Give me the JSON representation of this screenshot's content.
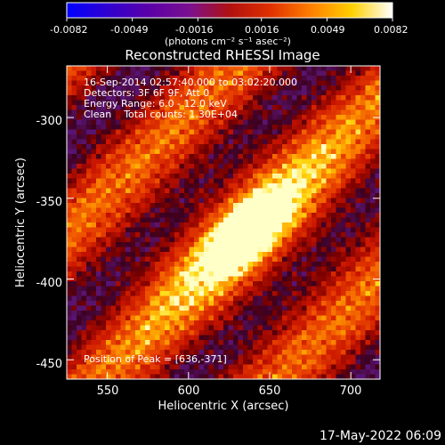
{
  "colorbar": {
    "ticks": [
      "-0.0082",
      "-0.0049",
      "-0.0016",
      "0.0016",
      "0.0049",
      "0.0082"
    ],
    "tick_values": [
      -0.0082,
      -0.0049,
      -0.0016,
      0.0016,
      0.0049,
      0.0082
    ],
    "range": [
      -0.0082,
      0.0082
    ],
    "unit_label": "(photons cm⁻² s⁻¹ asec⁻²)",
    "colors": [
      "#0000ff",
      "#3000d0",
      "#5a00a8",
      "#7a1090",
      "#b01010",
      "#e03000",
      "#ff8000",
      "#ffd000",
      "#ffffff"
    ]
  },
  "chart_data": {
    "type": "heatmap",
    "title": "Reconstructed RHESSI Image",
    "xlabel": "Heliocentric X (arcsec)",
    "ylabel": "Heliocentric Y (arcsec)",
    "xlim": [
      525,
      718
    ],
    "ylim": [
      -462,
      -268
    ],
    "x_ticks": [
      550,
      600,
      650,
      700
    ],
    "y_ticks": [
      -300,
      -350,
      -400,
      -450
    ],
    "annotations": [
      "16-Sep-2014 02:57:40.000 to 03:02:20.000",
      "Detectors: 3F 6F 9F, Att 0",
      "Energy Range: 6.0 - 12.0 keV",
      "Clean    Total counts: 1.30E+04"
    ],
    "peak_label": "Position of Peak = [636,-371]",
    "peak": [
      636,
      -371
    ],
    "colorscale": "RHESSI red-temperature (blue-purple negative, red/yellow/white positive)"
  },
  "timestamp": "17-May-2022 06:09"
}
